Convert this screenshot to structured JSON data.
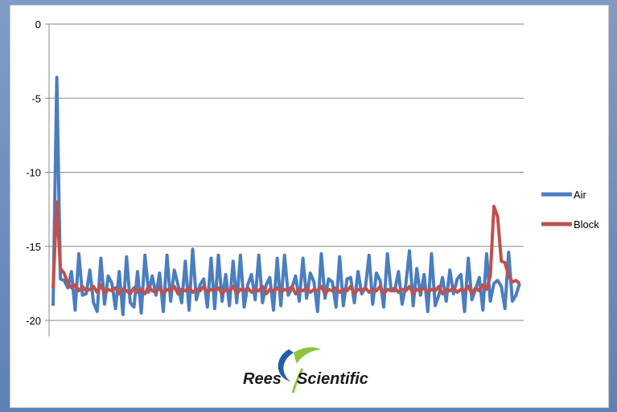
{
  "chart_data": {
    "type": "line",
    "title": "",
    "xlabel": "",
    "ylabel": "",
    "ylim": [
      -20,
      0
    ],
    "yticks": [
      0,
      -5,
      -10,
      -15,
      -20
    ],
    "grid": true,
    "legend_position": "right",
    "x": [
      1,
      2,
      3,
      4,
      5,
      6,
      7,
      8,
      9,
      10,
      11,
      12,
      13,
      14,
      15,
      16,
      17,
      18,
      19,
      20,
      21,
      22,
      23,
      24,
      25,
      26,
      27,
      28,
      29,
      30,
      31,
      32,
      33,
      34,
      35,
      36,
      37,
      38,
      39,
      40,
      41,
      42,
      43,
      44,
      45,
      46,
      47,
      48,
      49,
      50,
      51,
      52,
      53,
      54,
      55,
      56,
      57,
      58,
      59,
      60,
      61,
      62,
      63,
      64,
      65,
      66,
      67,
      68,
      69,
      70,
      71,
      72,
      73,
      74,
      75,
      76,
      77,
      78,
      79,
      80,
      81,
      82,
      83,
      84,
      85,
      86,
      87,
      88,
      89,
      90,
      91,
      92,
      93,
      94,
      95,
      96,
      97,
      98,
      99,
      100,
      101,
      102,
      103,
      104,
      105,
      106,
      107,
      108,
      109,
      110,
      111,
      112,
      113,
      114,
      115,
      116,
      117,
      118,
      119,
      120,
      121,
      122,
      123,
      124,
      125,
      126,
      127,
      128
    ],
    "series": [
      {
        "name": "Air",
        "color": "#4a7ebf",
        "values": [
          -19.0,
          -3.6,
          -17.2,
          -17.3,
          -17.8,
          -16.7,
          -19.3,
          -15.5,
          -18.3,
          -18.2,
          -16.6,
          -18.8,
          -19.4,
          -15.8,
          -18.9,
          -17.0,
          -17.5,
          -19.2,
          -16.7,
          -19.6,
          -15.7,
          -18.8,
          -19.1,
          -16.7,
          -19.5,
          -15.6,
          -18.1,
          -17.0,
          -18.3,
          -16.8,
          -19.4,
          -15.6,
          -18.7,
          -16.6,
          -17.6,
          -18.8,
          -16.0,
          -19.3,
          -15.2,
          -18.6,
          -17.6,
          -17.2,
          -19.1,
          -15.8,
          -19.2,
          -15.6,
          -18.7,
          -16.9,
          -19.0,
          -16.0,
          -18.8,
          -15.6,
          -19.1,
          -17.6,
          -16.9,
          -18.6,
          -15.6,
          -18.8,
          -17.6,
          -17.1,
          -19.3,
          -15.8,
          -19.0,
          -15.6,
          -18.3,
          -17.8,
          -17.0,
          -18.7,
          -15.8,
          -18.5,
          -16.8,
          -17.4,
          -19.4,
          -15.5,
          -18.5,
          -17.2,
          -17.4,
          -19.1,
          -15.7,
          -19.0,
          -17.2,
          -17.1,
          -18.8,
          -16.7,
          -18.2,
          -17.8,
          -15.6,
          -18.9,
          -16.8,
          -17.3,
          -19.1,
          -15.5,
          -18.0,
          -18.0,
          -16.7,
          -18.9,
          -17.6,
          -15.3,
          -19.0,
          -16.5,
          -18.3,
          -16.9,
          -19.4,
          -15.5,
          -19.0,
          -18.3,
          -17.1,
          -18.7,
          -16.6,
          -18.2,
          -17.2,
          -16.9,
          -19.4,
          -15.8,
          -18.6,
          -17.9,
          -17.1,
          -19.3,
          -15.5,
          -18.7,
          -17.5,
          -17.3,
          -17.7,
          -19.2,
          -15.4,
          -18.7,
          -18.3,
          -17.5
        ]
      },
      {
        "name": "Block",
        "color": "#c0504d",
        "values": [
          -17.8,
          -12.0,
          -16.5,
          -16.8,
          -17.5,
          -17.8,
          -17.6,
          -18.0,
          -17.7,
          -18.0,
          -17.9,
          -17.7,
          -18.1,
          -17.6,
          -18.2,
          -17.9,
          -18.0,
          -17.8,
          -18.2,
          -17.9,
          -18.0,
          -18.2,
          -17.8,
          -18.1,
          -17.9,
          -18.2,
          -17.7,
          -18.0,
          -18.1,
          -17.8,
          -18.2,
          -17.9,
          -18.0,
          -17.7,
          -18.2,
          -17.9,
          -18.0,
          -17.8,
          -18.1,
          -17.9,
          -18.0,
          -17.7,
          -18.1,
          -17.9,
          -18.0,
          -17.8,
          -18.2,
          -17.9,
          -18.0,
          -17.7,
          -18.2,
          -17.9,
          -18.0,
          -17.8,
          -18.1,
          -17.9,
          -18.0,
          -17.7,
          -18.2,
          -17.9,
          -18.0,
          -17.8,
          -18.1,
          -17.9,
          -18.0,
          -17.7,
          -18.2,
          -17.9,
          -18.0,
          -17.8,
          -18.1,
          -17.9,
          -18.0,
          -17.7,
          -18.2,
          -17.9,
          -18.0,
          -17.8,
          -18.1,
          -17.9,
          -18.0,
          -17.7,
          -18.2,
          -17.9,
          -18.0,
          -17.8,
          -18.1,
          -17.9,
          -18.0,
          -17.7,
          -18.2,
          -17.9,
          -18.0,
          -17.8,
          -18.1,
          -17.9,
          -18.0,
          -17.7,
          -18.2,
          -17.9,
          -18.0,
          -17.8,
          -18.1,
          -17.9,
          -18.0,
          -17.7,
          -18.2,
          -17.9,
          -18.0,
          -17.8,
          -18.1,
          -17.9,
          -18.0,
          -17.7,
          -18.2,
          -17.8,
          -18.0,
          -17.6,
          -17.9,
          -17.0,
          -12.3,
          -13.0,
          -16.0,
          -16.1,
          -17.0,
          -17.4,
          -17.3,
          -17.5
        ]
      }
    ]
  },
  "logo": {
    "text_left": "Rees",
    "text_right": "Scientific",
    "colors": {
      "crescent": "#1f5fa8",
      "leaf": "#8cc43c",
      "text": "#1a1a1a"
    }
  }
}
